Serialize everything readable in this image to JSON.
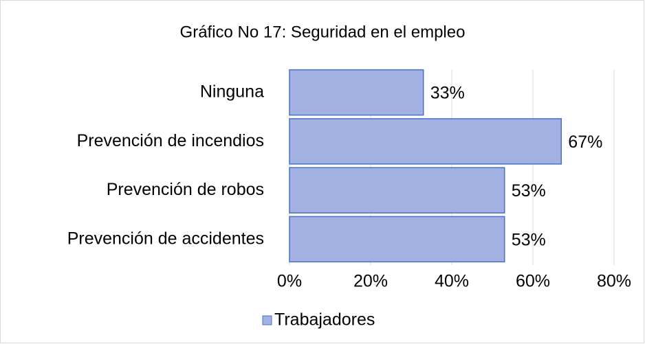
{
  "chart_data": {
    "type": "bar",
    "orientation": "horizontal",
    "title": "Gráfico No 17: Seguridad en el empleo",
    "categories": [
      "Ninguna",
      "Prevención de incendios",
      "Prevención de robos",
      "Prevención de accidentes"
    ],
    "series": [
      {
        "name": "Trabajadores",
        "color": "#a3b1e2",
        "edge_color": "#4472c4",
        "values": [
          33,
          67,
          53,
          53
        ],
        "value_labels": [
          "33%",
          "67%",
          "53%",
          "53%"
        ]
      }
    ],
    "xlim": [
      0,
      80
    ],
    "xticks": [
      {
        "value": 0,
        "label": "0%"
      },
      {
        "value": 20,
        "label": "20%"
      },
      {
        "value": 40,
        "label": "40%"
      },
      {
        "value": 60,
        "label": "60%"
      },
      {
        "value": 80,
        "label": "80%"
      }
    ],
    "grid": true,
    "legend": "bottom"
  }
}
